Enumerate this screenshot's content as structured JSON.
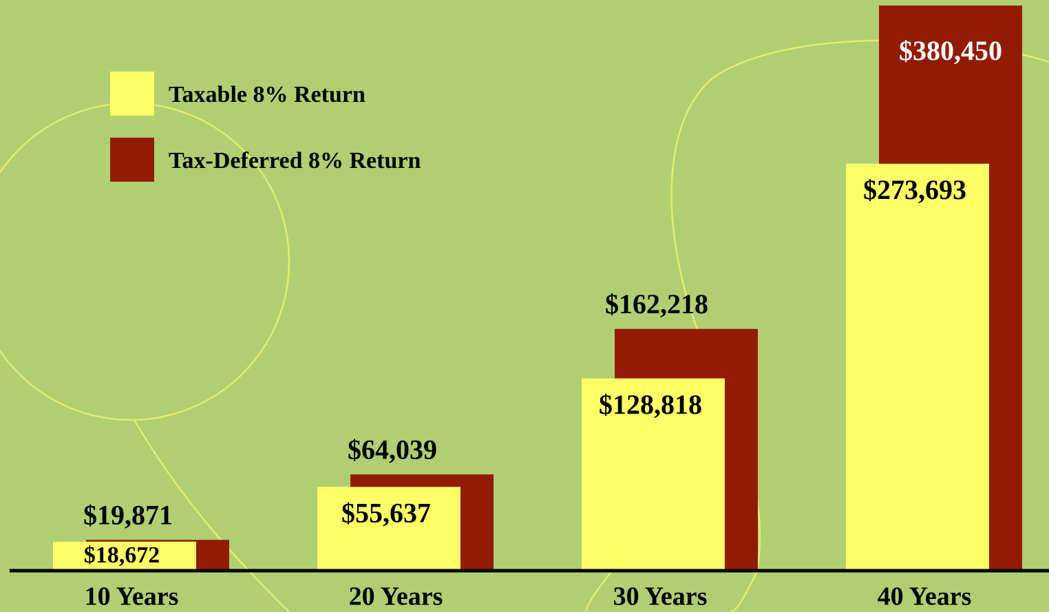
{
  "chart_data": {
    "type": "bar",
    "categories": [
      "10 Years",
      "20 Years",
      "30 Years",
      "40 Years"
    ],
    "series": [
      {
        "name": "Taxable 8% Return",
        "color": "#ffff66",
        "values": [
          18672,
          55637,
          128818,
          273693
        ],
        "value_labels": [
          "$18,672",
          "$55,637",
          "$128,818",
          "$273,693"
        ]
      },
      {
        "name": "Tax-Deferred 8% Return",
        "color": "#921b04",
        "values": [
          19871,
          64039,
          162218,
          380450
        ],
        "value_labels": [
          "$19,871",
          "$64,039",
          "$162,218",
          "$380,450"
        ]
      }
    ],
    "legend": "top-left"
  }
}
